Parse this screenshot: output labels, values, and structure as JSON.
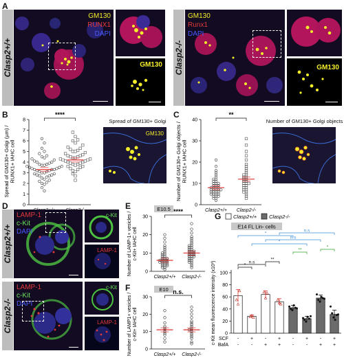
{
  "panels": {
    "A": {
      "letter": "A",
      "label_left": "Clasp2+/+",
      "label_right": "Clasp2-/-",
      "legend": [
        "GM130",
        "RUNX1",
        "DAPI"
      ],
      "inset_label": "GM130",
      "legend_right": [
        "GM130",
        "Runx1",
        "DAPI"
      ]
    },
    "B": {
      "letter": "B"
    },
    "C": {
      "letter": "C"
    },
    "D": {
      "letter": "D",
      "label_top": "Clasp2+/+",
      "label_bottom": "Clasp2-/-",
      "legend": [
        "LAMP-1",
        "c-Kit",
        "DAPI"
      ],
      "inset_top": "c-Kit",
      "inset_bottom": "LAMP-1"
    },
    "E": {
      "letter": "E"
    },
    "F": {
      "letter": "F"
    },
    "G": {
      "letter": "G"
    }
  },
  "colors": {
    "yellow": "#f4ee2a",
    "red": "#e23a3a",
    "blue": "#4a5bff",
    "green": "#6be35a",
    "open": "#ffffff",
    "filled": "#6b6b6b",
    "meanbar": "#e03030"
  },
  "chart_data": [
    {
      "id": "B",
      "type": "scatter",
      "ylabel": "Spread of GM130+ Golgi (µm) / RUNX1+ IAHC cell",
      "categories": [
        "Clasp2+/+",
        "Clasp2-/-"
      ],
      "ylim": [
        0,
        8
      ],
      "yticks": [
        0,
        1,
        2,
        3,
        4,
        5,
        6,
        7,
        8
      ],
      "means": [
        3.3,
        4.2
      ],
      "significance": "****",
      "schematic_title": "Spread of GM130+ Golgi",
      "schematic_label": "GM130",
      "series": [
        {
          "name": "Clasp2+/+",
          "marker": "circle",
          "values": [
            1.3,
            1.6,
            1.9,
            2.0,
            2.1,
            2.2,
            2.3,
            2.4,
            2.5,
            2.6,
            2.7,
            2.7,
            2.8,
            2.8,
            2.9,
            2.9,
            3.0,
            3.0,
            3.1,
            3.1,
            3.2,
            3.2,
            3.3,
            3.3,
            3.3,
            3.4,
            3.4,
            3.5,
            3.5,
            3.6,
            3.6,
            3.7,
            3.7,
            3.8,
            3.8,
            3.9,
            4.0,
            4.0,
            4.1,
            4.2,
            4.3,
            4.4,
            4.5,
            4.6,
            4.8,
            5.0,
            5.3,
            5.8,
            6.2
          ]
        },
        {
          "name": "Clasp2-/-",
          "marker": "square",
          "values": [
            2.3,
            2.7,
            2.9,
            3.1,
            3.2,
            3.3,
            3.4,
            3.5,
            3.6,
            3.6,
            3.7,
            3.8,
            3.8,
            3.9,
            3.9,
            4.0,
            4.0,
            4.1,
            4.1,
            4.2,
            4.2,
            4.3,
            4.3,
            4.4,
            4.4,
            4.5,
            4.5,
            4.6,
            4.6,
            4.7,
            4.8,
            4.9,
            5.0,
            5.0,
            5.1,
            5.2,
            5.3,
            5.4,
            5.6,
            5.8,
            6.0,
            6.1,
            6.4,
            6.8
          ]
        }
      ]
    },
    {
      "id": "C",
      "type": "scatter",
      "ylabel": "Number of GM130+ Golgi objects / RUNX1+ IAHC cell",
      "categories": [
        "Clasp2+/+",
        "Clasp2-/-"
      ],
      "ylim": [
        0,
        40
      ],
      "yticks": [
        0,
        10,
        20,
        30,
        40
      ],
      "means": [
        8,
        12
      ],
      "significance": "**",
      "schematic_title": "Number of GM130+ Golgi objects",
      "series": [
        {
          "name": "Clasp2+/+",
          "marker": "circle",
          "values": [
            2,
            3,
            3,
            4,
            4,
            4,
            5,
            5,
            5,
            5,
            6,
            6,
            6,
            6,
            7,
            7,
            7,
            7,
            7,
            8,
            8,
            8,
            8,
            9,
            9,
            9,
            10,
            10,
            10,
            11,
            11,
            12,
            12,
            13,
            14,
            15,
            16,
            18,
            21
          ]
        },
        {
          "name": "Clasp2-/-",
          "marker": "square",
          "values": [
            3,
            4,
            5,
            6,
            6,
            7,
            7,
            8,
            8,
            9,
            9,
            10,
            10,
            10,
            11,
            11,
            12,
            12,
            13,
            13,
            14,
            14,
            15,
            16,
            17,
            18,
            19,
            21,
            23,
            25,
            28,
            31
          ]
        }
      ]
    },
    {
      "id": "E",
      "type": "scatter",
      "tag": "E10.5",
      "ylabel": "Number of LAMP-1+ vesicles / c-Kit+ IAHC cell",
      "categories": [
        "Clasp2+/+",
        "Clasp2-/-"
      ],
      "ylim": [
        0,
        30
      ],
      "yticks": [
        0,
        10,
        20,
        30
      ],
      "means": [
        6,
        10
      ],
      "significance": "****",
      "series": [
        {
          "name": "Clasp2+/+",
          "marker": "circle",
          "values": [
            1,
            2,
            2,
            3,
            3,
            3,
            4,
            4,
            4,
            5,
            5,
            5,
            5,
            6,
            6,
            6,
            6,
            7,
            7,
            7,
            8,
            8,
            9,
            9,
            10,
            10,
            11,
            12,
            13,
            14,
            16,
            18,
            20
          ]
        },
        {
          "name": "Clasp2-/-",
          "marker": "circle",
          "values": [
            2,
            3,
            4,
            5,
            5,
            6,
            6,
            7,
            7,
            8,
            8,
            8,
            9,
            9,
            9,
            10,
            10,
            10,
            11,
            11,
            11,
            12,
            12,
            13,
            13,
            14,
            14,
            15,
            16,
            17,
            18,
            19,
            21,
            23,
            26
          ]
        }
      ]
    },
    {
      "id": "F",
      "type": "scatter",
      "tag": "E10",
      "ylabel": "Number of LAMP1+ vesicles / c-Kit+ IAHC cell",
      "categories": [
        "Clasp2+/+",
        "Clasp2-/-"
      ],
      "ylim": [
        0,
        30
      ],
      "yticks": [
        0,
        10,
        20,
        30
      ],
      "means": [
        11,
        11
      ],
      "significance": "n.s.",
      "series": [
        {
          "name": "Clasp2+/+",
          "marker": "circle",
          "values": [
            4,
            6,
            8,
            9,
            10,
            11,
            12,
            13,
            15,
            18,
            22
          ]
        },
        {
          "name": "Clasp2-/-",
          "marker": "circle",
          "values": [
            3,
            4,
            6,
            7,
            8,
            9,
            10,
            11,
            11,
            12,
            13,
            14,
            15,
            16,
            18,
            20,
            22,
            24
          ]
        }
      ]
    },
    {
      "id": "G",
      "type": "bar",
      "title": "E14 FL Lin- cells",
      "ylabel": "c-Kit mean fluorescence intensity (x10³)",
      "ylim": [
        0,
        100
      ],
      "yticks": [
        0,
        20,
        40,
        60,
        80,
        100
      ],
      "legend": [
        "Clasp2+/+",
        "Clasp2-/-"
      ],
      "row_labels": [
        "SCF",
        "BafA"
      ],
      "scf": [
        "-",
        "+",
        "-",
        "+",
        "-",
        "+",
        "-",
        "+"
      ],
      "bafa": [
        "-",
        "-",
        "+",
        "+",
        "-",
        "-",
        "+",
        "+"
      ],
      "values": [
        62,
        28,
        64,
        52,
        42,
        24,
        58,
        31
      ],
      "errors": [
        10,
        2,
        6,
        5,
        4,
        4,
        5,
        7
      ],
      "groups": [
        "Clasp2+/+",
        "Clasp2+/+",
        "Clasp2+/+",
        "Clasp2+/+",
        "Clasp2-/-",
        "Clasp2-/-",
        "Clasp2-/-",
        "Clasp2-/-"
      ],
      "points": [
        [
          55,
          48,
          70
        ],
        [
          27,
          29,
          26
        ],
        [
          68,
          58,
          66
        ],
        [
          55,
          50,
          48
        ],
        [
          44,
          40,
          38,
          46,
          42,
          41
        ],
        [
          25,
          22,
          19,
          27,
          24,
          28
        ],
        [
          64,
          55,
          52,
          60,
          58,
          57
        ],
        [
          44,
          33,
          26,
          22,
          30,
          31
        ]
      ],
      "comparisons": [
        {
          "from": 1,
          "to": 2,
          "label": "*",
          "color": "#111111"
        },
        {
          "from": 1,
          "to": 3,
          "label": "n.s",
          "color": "#111111"
        },
        {
          "from": 3,
          "to": 4,
          "label": "**",
          "color": "#111111"
        },
        {
          "from": 5,
          "to": 6,
          "label": "**",
          "color": "#2ea42e"
        },
        {
          "from": 7,
          "to": 8,
          "label": "*",
          "color": "#2ea42e"
        },
        {
          "from": 2,
          "to": 6,
          "label": "*",
          "color": "#3a8fd6"
        },
        {
          "from": 3,
          "to": 7,
          "label": "n.s",
          "color": "#3a8fd6"
        },
        {
          "from": 1,
          "to": 5,
          "label": "*",
          "color": "#3a8fd6"
        },
        {
          "from": 4,
          "to": 8,
          "label": "n.s",
          "color": "#3a8fd6"
        }
      ]
    }
  ]
}
